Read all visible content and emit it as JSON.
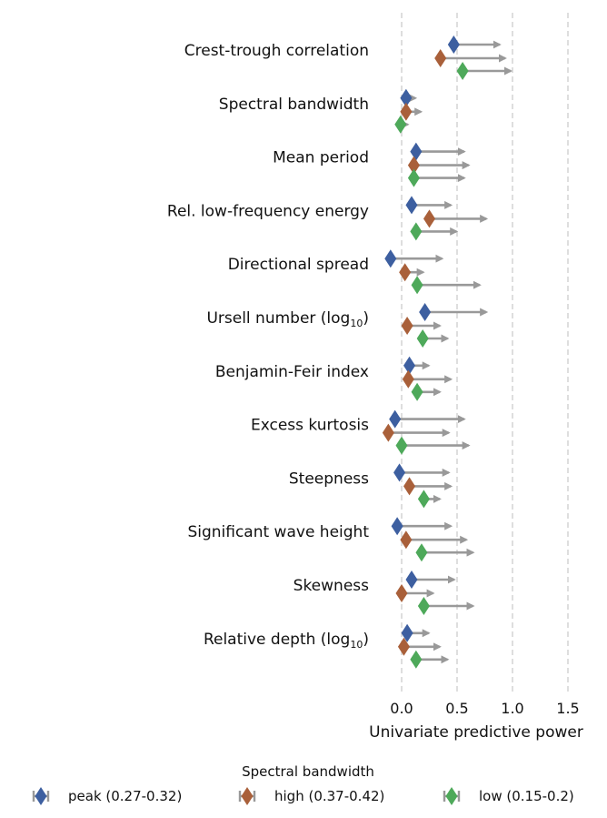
{
  "chart_data": {
    "type": "scatter",
    "xlabel": "Univariate predictive power",
    "xlim": [
      -0.25,
      1.72
    ],
    "xticks": [
      0.0,
      0.5,
      1.0,
      1.5
    ],
    "xtick_labels": [
      "0.0",
      "0.5",
      "1.0",
      "1.5"
    ],
    "grid": "vertical dashed lines at x ticks",
    "marker": "diamond at point estimate with arrow extending to upper value",
    "categories": [
      "Crest-trough correlation",
      "Spectral bandwidth",
      "Mean period",
      "Rel. low-frequency energy",
      "Directional spread",
      "Ursell number (log10)",
      "Benjamin-Feir index",
      "Excess kurtosis",
      "Steepness",
      "Significant wave height",
      "Skewness",
      "Relative depth (log10)"
    ],
    "category_labels": [
      {
        "main": "Crest-trough correlation",
        "sub": ""
      },
      {
        "main": "Spectral bandwidth",
        "sub": ""
      },
      {
        "main": "Mean period",
        "sub": ""
      },
      {
        "main": "Rel. low-frequency energy",
        "sub": ""
      },
      {
        "main": "Directional spread",
        "sub": ""
      },
      {
        "main": "Ursell number (log",
        "sub": "10",
        "tail": ")"
      },
      {
        "main": "Benjamin-Feir index",
        "sub": ""
      },
      {
        "main": "Excess kurtosis",
        "sub": ""
      },
      {
        "main": "Steepness",
        "sub": ""
      },
      {
        "main": "Significant wave height",
        "sub": ""
      },
      {
        "main": "Skewness",
        "sub": ""
      },
      {
        "main": "Relative depth (log",
        "sub": "10",
        "tail": ")"
      }
    ],
    "legend": {
      "title": "Spectral bandwidth",
      "placement": "bottom"
    },
    "series": [
      {
        "name": "peak (0.27-0.32)",
        "color": "#3d5fa0",
        "values": [
          0.47,
          0.04,
          0.13,
          0.09,
          -0.1,
          0.21,
          0.07,
          -0.06,
          -0.02,
          -0.04,
          0.09,
          0.05
        ],
        "upper": [
          0.9,
          0.14,
          0.58,
          0.46,
          0.38,
          0.78,
          0.26,
          0.58,
          0.44,
          0.46,
          0.49,
          0.26
        ]
      },
      {
        "name": "high (0.37-0.42)",
        "color": "#a9603a",
        "values": [
          0.35,
          0.04,
          0.11,
          0.25,
          0.03,
          0.05,
          0.06,
          -0.12,
          0.07,
          0.04,
          0.0,
          0.02
        ],
        "upper": [
          0.95,
          0.19,
          0.62,
          0.78,
          0.21,
          0.36,
          0.46,
          0.44,
          0.46,
          0.6,
          0.3,
          0.36
        ]
      },
      {
        "name": "low (0.15-0.2)",
        "color": "#4ea95a",
        "values": [
          0.55,
          -0.01,
          0.11,
          0.13,
          0.14,
          0.19,
          0.14,
          0.0,
          0.2,
          0.18,
          0.2,
          0.13
        ],
        "upper": [
          1.0,
          0.07,
          0.58,
          0.51,
          0.72,
          0.43,
          0.36,
          0.62,
          0.36,
          0.66,
          0.66,
          0.43
        ]
      }
    ]
  }
}
